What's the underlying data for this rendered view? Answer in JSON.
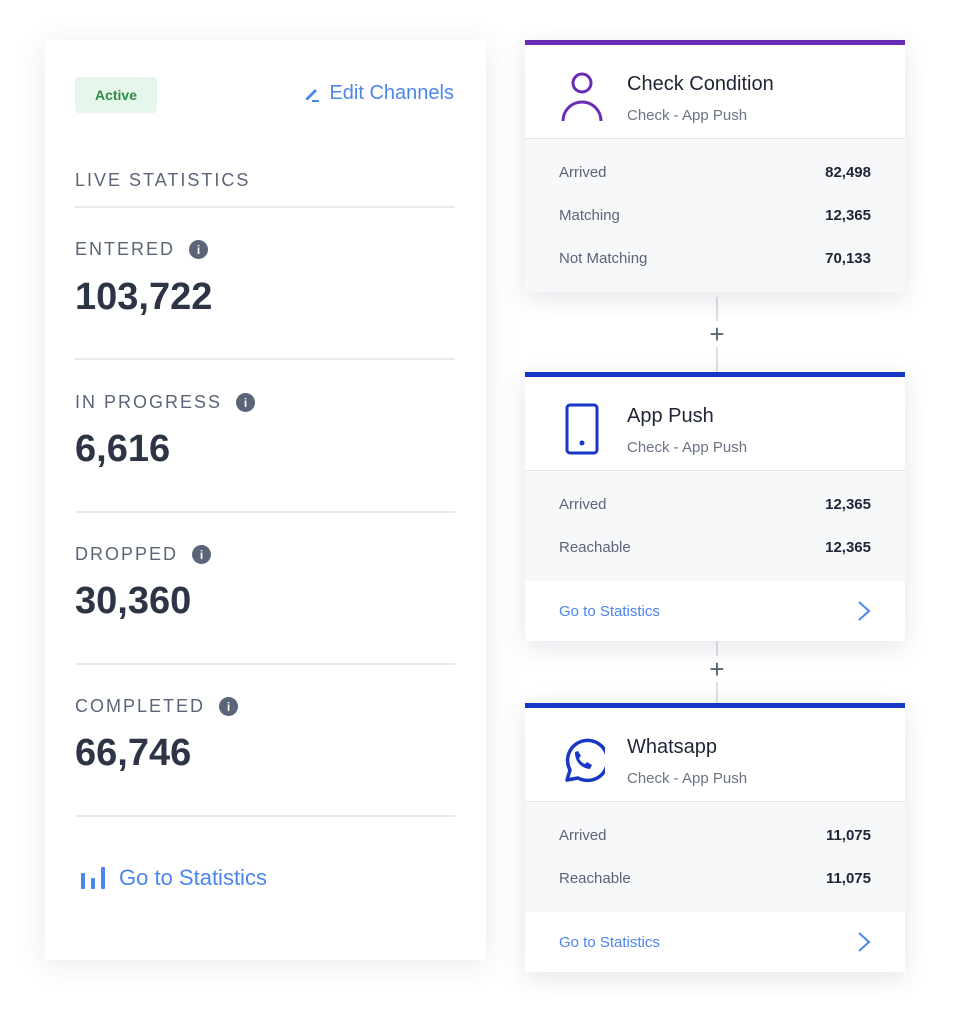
{
  "left_panel": {
    "status_badge": "Active",
    "edit_channels": "Edit Channels",
    "section_title": "LIVE STATISTICS",
    "stats": [
      {
        "label": "ENTERED",
        "value": "103,722"
      },
      {
        "label": "IN PROGRESS",
        "value": "6,616"
      },
      {
        "label": "DROPPED",
        "value": "30,360"
      },
      {
        "label": "COMPLETED",
        "value": "66,746"
      }
    ],
    "go_to_statistics": "Go to Statistics"
  },
  "cards": [
    {
      "title": "Check Condition",
      "subtitle": "Check - App Push",
      "icon": "user-icon",
      "accent": "#6a2bb5",
      "rows": [
        {
          "k": "Arrived",
          "v": "82,498"
        },
        {
          "k": "Matching",
          "v": "12,365"
        },
        {
          "k": "Not Matching",
          "v": "70,133"
        }
      ]
    },
    {
      "title": "App Push",
      "subtitle": "Check - App Push",
      "icon": "smartphone-icon",
      "accent": "#1638c4",
      "rows": [
        {
          "k": "Arrived",
          "v": "12,365"
        },
        {
          "k": "Reachable",
          "v": "12,365"
        }
      ],
      "footer": "Go to Statistics"
    },
    {
      "title": "Whatsapp",
      "subtitle": "Check - App Push",
      "icon": "whatsapp-icon",
      "accent": "#1638c4",
      "rows": [
        {
          "k": "Arrived",
          "v": "11,075"
        },
        {
          "k": "Reachable",
          "v": "11,075"
        }
      ],
      "footer": "Go to Statistics"
    }
  ],
  "connector_symbol": "+"
}
